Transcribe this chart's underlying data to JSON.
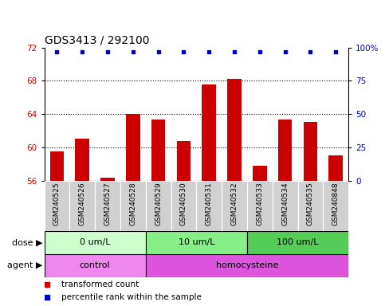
{
  "title": "GDS3413 / 292100",
  "samples": [
    "GSM240525",
    "GSM240526",
    "GSM240527",
    "GSM240528",
    "GSM240529",
    "GSM240530",
    "GSM240531",
    "GSM240532",
    "GSM240533",
    "GSM240534",
    "GSM240535",
    "GSM240848"
  ],
  "bar_values": [
    59.5,
    61.0,
    56.3,
    64.0,
    63.3,
    60.7,
    67.5,
    68.2,
    57.8,
    63.3,
    63.0,
    59.0
  ],
  "bar_color": "#cc0000",
  "percentile_color": "#0000cc",
  "ylim_left": [
    56,
    72
  ],
  "ylim_right": [
    0,
    100
  ],
  "yticks_left": [
    56,
    60,
    64,
    68,
    72
  ],
  "yticks_right": [
    0,
    25,
    50,
    75,
    100
  ],
  "grid_ticks": [
    60,
    64,
    68
  ],
  "dose_groups": [
    {
      "label": "0 um/L",
      "start": 0,
      "end": 3,
      "color": "#ccffcc"
    },
    {
      "label": "10 um/L",
      "start": 4,
      "end": 7,
      "color": "#88ee88"
    },
    {
      "label": "100 um/L",
      "start": 8,
      "end": 11,
      "color": "#55cc55"
    }
  ],
  "agent_groups": [
    {
      "label": "control",
      "start": 0,
      "end": 3,
      "color": "#ee88ee"
    },
    {
      "label": "homocysteine",
      "start": 4,
      "end": 11,
      "color": "#dd55dd"
    }
  ],
  "dose_label": "dose",
  "agent_label": "agent",
  "legend_bar_label": "transformed count",
  "legend_percentile_label": "percentile rank within the sample",
  "bar_color_label": "#cc0000",
  "percentile_color_label": "#0000cc",
  "title_fontsize": 10,
  "tick_fontsize": 7.5,
  "label_fontsize": 8,
  "sample_fontsize": 6.5,
  "legend_fontsize": 7.5,
  "bar_width": 0.55
}
